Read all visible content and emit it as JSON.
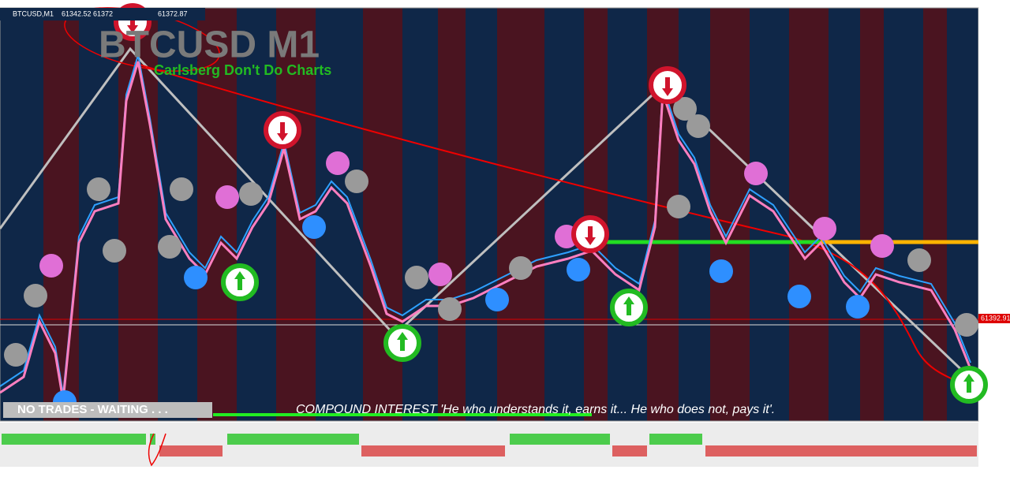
{
  "window": {
    "symbol_label": "BTCUSD,M1",
    "quote_label": "61342.52 61372",
    "quote_label_2": "61372.87"
  },
  "overlay": {
    "title": "BTCUSD M1",
    "subtitle": "Carlsberg Don't Do Charts",
    "status": "NO TRADES - WAITING . . .",
    "quote": "COMPOUND INTEREST 'He who understands it, earns it... He who does not, pays it'."
  },
  "price_axis": {
    "current_price": "61392.91"
  }
}
